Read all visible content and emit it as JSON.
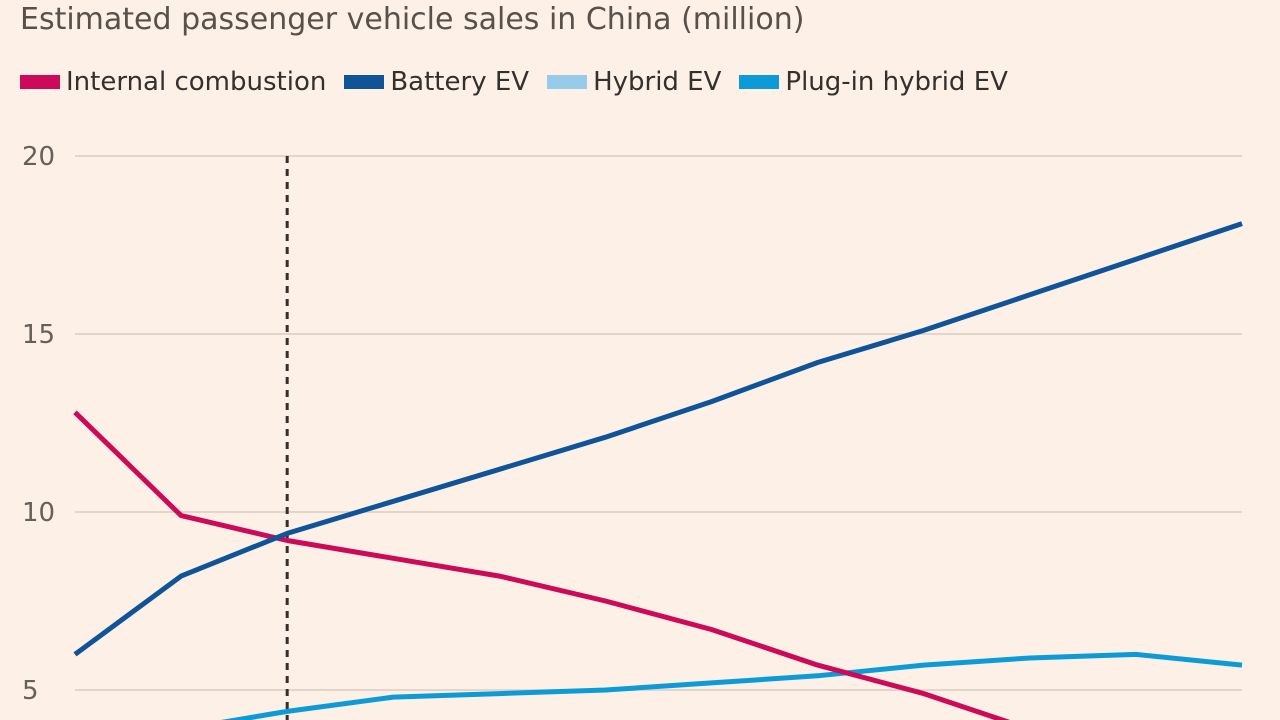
{
  "chart_data": {
    "type": "line",
    "title": "Estimated passenger vehicle sales in China (million)",
    "xlabel": "",
    "ylabel": "",
    "x": [
      0,
      1,
      2,
      3,
      4,
      5,
      6,
      7,
      8,
      9,
      10,
      11
    ],
    "xlim": [
      0,
      11
    ],
    "ylim": [
      4,
      20
    ],
    "yticks": [
      5,
      10,
      15,
      20
    ],
    "grid": true,
    "legend_position": "top-left",
    "reference_line_x": 2,
    "series": [
      {
        "name": "Internal combustion",
        "color": "#cc0a59",
        "values": [
          12.8,
          9.9,
          9.2,
          8.7,
          8.2,
          7.5,
          6.7,
          5.7,
          4.9,
          3.9,
          null,
          null
        ]
      },
      {
        "name": "Battery EV",
        "color": "#0f5499",
        "values": [
          6.0,
          8.2,
          9.4,
          10.3,
          11.2,
          12.1,
          13.1,
          14.2,
          15.1,
          16.1,
          17.1,
          18.1
        ]
      },
      {
        "name": "Hybrid EV",
        "color": "#96cce9",
        "values": [
          null,
          null,
          null,
          null,
          null,
          null,
          null,
          null,
          null,
          null,
          null,
          null
        ]
      },
      {
        "name": "Plug-in hybrid EV",
        "color": "#0d9bd7",
        "values": [
          3.9,
          3.9,
          4.4,
          4.8,
          4.9,
          5.0,
          5.2,
          5.4,
          5.7,
          5.9,
          6.0,
          5.7
        ]
      }
    ]
  }
}
